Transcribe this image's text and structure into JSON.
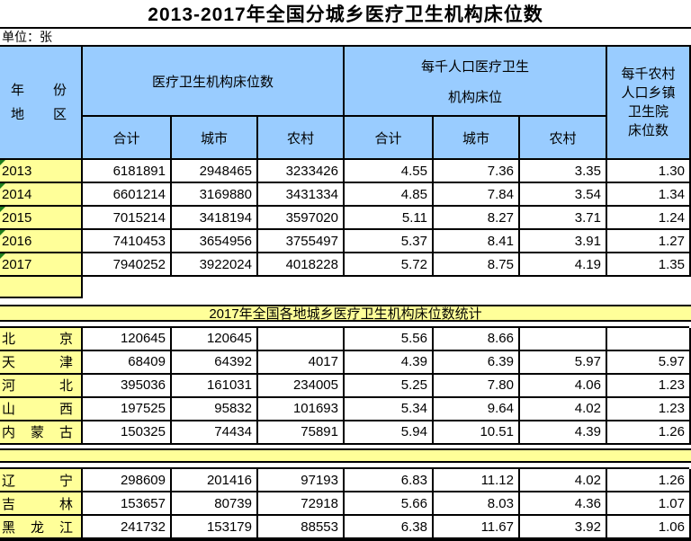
{
  "title": "2013-2017年全国分城乡医疗卫生机构床位数",
  "unit_label": "单位：张",
  "header": {
    "year_region_line1": "年　份",
    "year_region_line2": "地　区",
    "group_beds": "医疗卫生机构床位数",
    "group_per1000_line1": "每千人口医疗卫生",
    "group_per1000_line2": "机构床位",
    "rural_township": "每千农村\n人口乡镇\n卫生院\n床位数",
    "sub_labels": [
      "合计",
      "城市",
      "农村",
      "合计",
      "城市",
      "农村"
    ]
  },
  "national_rows": [
    {
      "label": "2013",
      "error_indicator": true,
      "values": [
        "6181891",
        "2948465",
        "3233426",
        "4.55",
        "7.36",
        "3.35",
        "1.30"
      ]
    },
    {
      "label": "2014",
      "error_indicator": true,
      "values": [
        "6601214",
        "3169880",
        "3431334",
        "4.85",
        "7.84",
        "3.54",
        "1.34"
      ]
    },
    {
      "label": "2015",
      "error_indicator": true,
      "values": [
        "7015214",
        "3418194",
        "3597020",
        "5.11",
        "8.27",
        "3.71",
        "1.24"
      ]
    },
    {
      "label": "2016",
      "error_indicator": true,
      "values": [
        "7410453",
        "3654956",
        "3755497",
        "5.37",
        "8.41",
        "3.91",
        "1.27"
      ]
    },
    {
      "label": "2017",
      "error_indicator": true,
      "values": [
        "7940252",
        "3922024",
        "4018228",
        "5.72",
        "8.75",
        "4.19",
        "1.35"
      ]
    }
  ],
  "section_banner": "2017年全国各地城乡医疗卫生机构床位数统计",
  "province_rows_1": [
    {
      "label": "北　京",
      "error_indicator": false,
      "values": [
        "120645",
        "120645",
        "",
        "5.56",
        "8.66",
        "",
        ""
      ]
    },
    {
      "label": "天　津",
      "error_indicator": false,
      "values": [
        "68409",
        "64392",
        "4017",
        "4.39",
        "6.39",
        "5.97",
        "5.97"
      ]
    },
    {
      "label": "河　北",
      "error_indicator": false,
      "values": [
        "395036",
        "161031",
        "234005",
        "5.25",
        "7.80",
        "4.06",
        "1.23"
      ]
    },
    {
      "label": "山　西",
      "error_indicator": false,
      "values": [
        "197525",
        "95832",
        "101693",
        "5.34",
        "9.64",
        "4.02",
        "1.23"
      ]
    },
    {
      "label": "内蒙古",
      "error_indicator": false,
      "values": [
        "150325",
        "74434",
        "75891",
        "5.94",
        "10.51",
        "4.39",
        "1.26"
      ]
    }
  ],
  "province_rows_2": [
    {
      "label": "辽　宁",
      "error_indicator": false,
      "values": [
        "298609",
        "201416",
        "97193",
        "6.83",
        "11.12",
        "4.02",
        "1.26"
      ]
    },
    {
      "label": "吉　林",
      "error_indicator": false,
      "values": [
        "153657",
        "80739",
        "72918",
        "5.66",
        "8.03",
        "4.36",
        "1.07"
      ]
    },
    {
      "label": "黑龙江",
      "error_indicator": false,
      "values": [
        "241732",
        "153179",
        "88553",
        "6.38",
        "11.67",
        "3.92",
        "1.06"
      ]
    }
  ],
  "colors": {
    "header_blue": "#99CCFF",
    "row_yellow": "#FFFF99",
    "border": "#000000",
    "triangle_green": "#1e7e1e"
  }
}
